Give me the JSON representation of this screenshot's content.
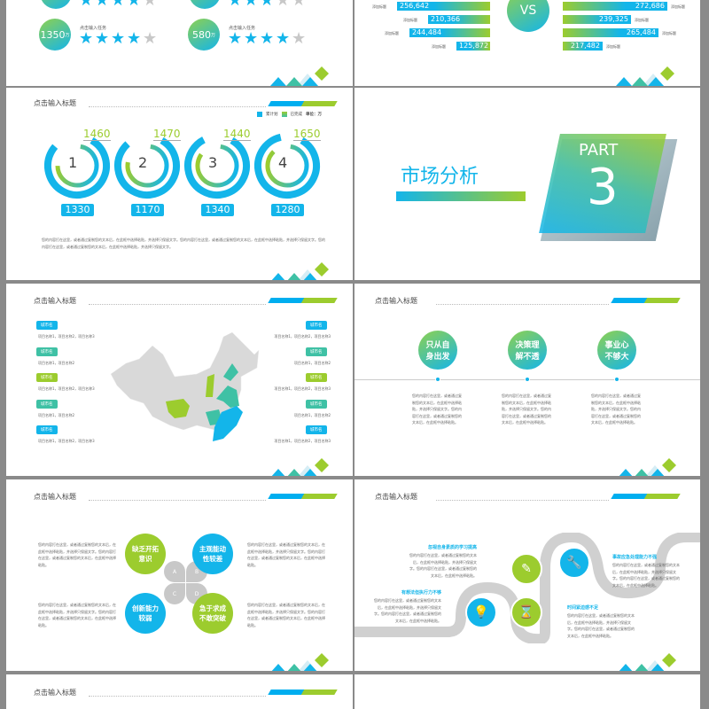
{
  "slide_title": "点击输入标题",
  "placeholder": "您的内容打在这里，或者通过复制您的文本后，在此框中选择粘贴，并选择只保留文字。您的内容打在这里，或者通过复制您的文本后，在此框中选择粘贴，并选择只保留文字。您的内容打在这里，或者通过复制您的文本后，在此框中选择粘贴，并选择只保留文字。",
  "placeholder_short": "您的内容打在这里，或者通过复制您的文本后，在此框中选择粘贴，并选择只保留文字。您的内容打在这里，或者通过复制您的文本后，在此框中选择粘贴。",
  "colors": {
    "blue": "#13b5ea",
    "green": "#9ccc2e",
    "teal": "#3fc1a5",
    "gray": "#cccccc"
  },
  "rating_slide": {
    "items": [
      {
        "value": "1350",
        "unit": "万",
        "label": "点击输入任务",
        "stars": 4
      },
      {
        "value": "580",
        "unit": "万",
        "label": "点击输入任务",
        "stars": 4
      }
    ],
    "top_row_stars": [
      4,
      3
    ]
  },
  "vs_slide": {
    "vs": "VS",
    "label": "添加标题",
    "left": [
      "256,642",
      "210,366",
      "244,484",
      "125,872"
    ],
    "right": [
      "272,686",
      "239,325",
      "265,484",
      "217,482"
    ]
  },
  "donut_slide": {
    "legend": [
      "累计划",
      "已完成"
    ],
    "unit": "单位：万",
    "items": [
      {
        "n": "1",
        "top": "1460",
        "bottom": "1330"
      },
      {
        "n": "2",
        "top": "1470",
        "bottom": "1170"
      },
      {
        "n": "3",
        "top": "1440",
        "bottom": "1340"
      },
      {
        "n": "4",
        "top": "1650",
        "bottom": "1280"
      }
    ]
  },
  "part_slide": {
    "title": "市场分析",
    "part": "PART",
    "number": "3"
  },
  "map_slide": {
    "tags": [
      "城市名",
      "城市名",
      "城市名",
      "城市名",
      "城市名"
    ],
    "left_projects": [
      "项目名称1，项目名称2，项目名称3",
      "项目名称1，项目名称2",
      "项目名称1，项目名称2，项目名称3",
      "项目名称1，项目名称2",
      "项目名称1，项目名称2，项目名称3"
    ],
    "right_projects": [
      "项目名称1，项目名称2，项目名称3",
      "项目名称1，项目名称2",
      "项目名称1，项目名称2，项目名称3",
      "项目名称1，项目名称2",
      "项目名称1，项目名称2，项目名称3"
    ]
  },
  "timeline_slide": {
    "items": [
      "只从自身出发",
      "决策理解不透",
      "事业心不够大"
    ]
  },
  "clover_slide": {
    "items": [
      "缺乏开拓意识",
      "主观能动性较差",
      "创新能力较弱",
      "急于求成不敢突破"
    ],
    "letters": [
      "A",
      "B",
      "C",
      "D"
    ]
  },
  "road_slide": {
    "items": [
      "忽视自身素质的学习提高",
      "事故应急处理能力不强",
      "有想法但执行力不够",
      "时间紧迫感不足"
    ],
    "icons": [
      "pen-icon",
      "wrench-icon",
      "lightbulb-icon",
      "hourglass-icon"
    ]
  }
}
